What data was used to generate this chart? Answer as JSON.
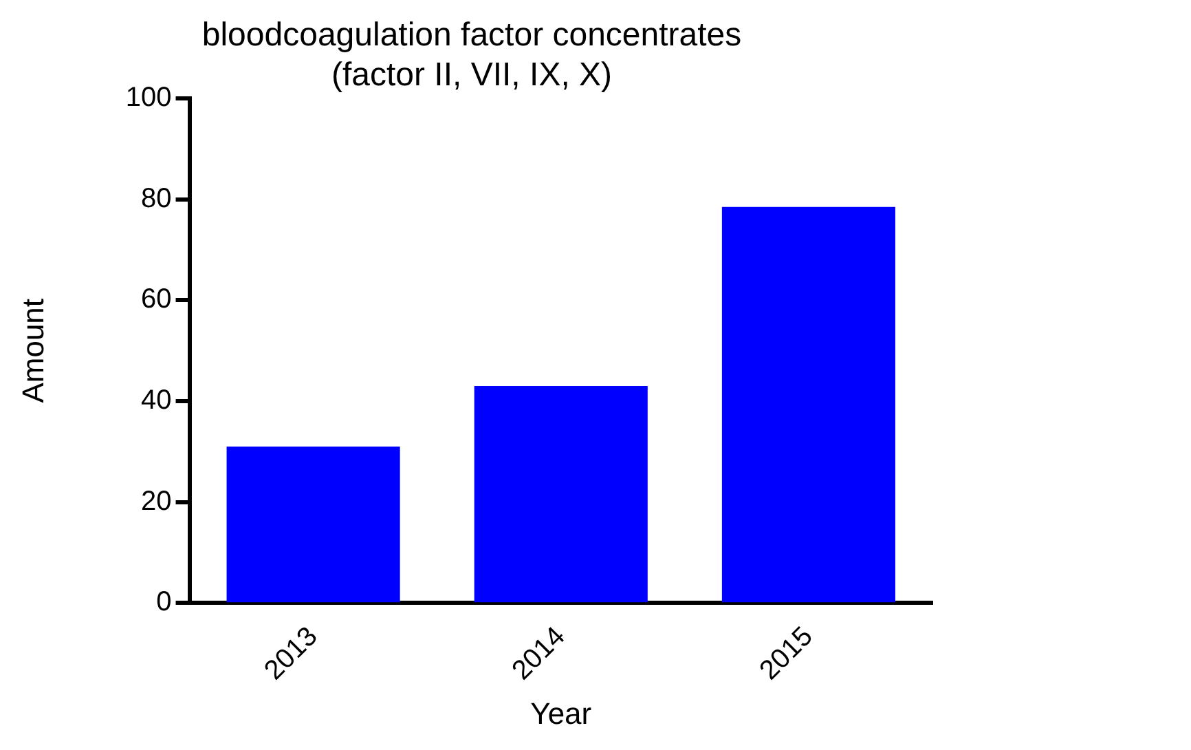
{
  "chart_data": {
    "type": "bar",
    "title": "bloodcoagulation factor concentrates\n(factor II, VII, IX, X)",
    "xlabel": "Year",
    "ylabel": "Amount",
    "categories": [
      "2013",
      "2014",
      "2015"
    ],
    "series": [
      {
        "color": "#0000ff",
        "values": [
          31,
          43,
          78.5
        ]
      }
    ],
    "ylim": [
      0,
      100
    ],
    "yticks": [
      0,
      20,
      40,
      60,
      80,
      100
    ],
    "grid": false,
    "legend": false
  }
}
